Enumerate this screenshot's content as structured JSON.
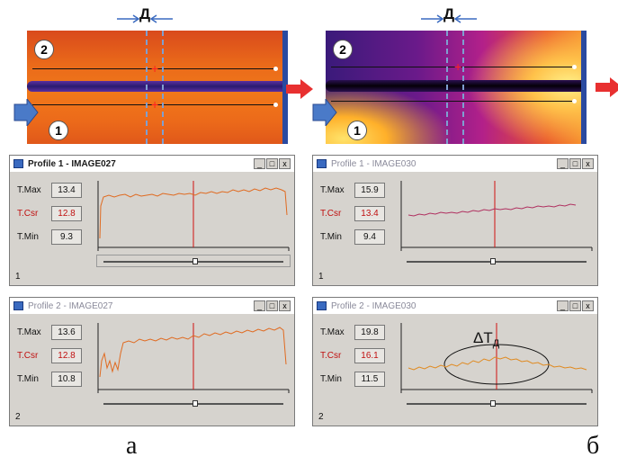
{
  "top_labels": {
    "dim_label": "Д",
    "marker_1": "1",
    "marker_2": "2"
  },
  "windows": [
    {
      "title": "Profile 1 - IMAGE027",
      "tmax_label": "T.Max",
      "tmax": "13.4",
      "tcsr_label": "T.Csr",
      "tcsr": "12.8",
      "tmin_label": "T.Min",
      "tmin": "9.3",
      "index": "1",
      "state": "active"
    },
    {
      "title": "Profile 1 - IMAGE030",
      "tmax_label": "T.Max",
      "tmax": "15.9",
      "tcsr_label": "T.Csr",
      "tcsr": "13.4",
      "tmin_label": "T.Min",
      "tmin": "9.4",
      "index": "1",
      "state": "inactive"
    },
    {
      "title": "Profile 2 - IMAGE027",
      "tmax_label": "T.Max",
      "tmax": "13.6",
      "tcsr_label": "T.Csr",
      "tcsr": "12.8",
      "tmin_label": "T.Min",
      "tmin": "10.8",
      "index": "2",
      "state": "inactive"
    },
    {
      "title": "Profile 2 - IMAGE030",
      "tmax_label": "T.Max",
      "tmax": "19.8",
      "tcsr_label": "T.Csr",
      "tcsr": "16.1",
      "tmin_label": "T.Min",
      "tmin": "11.5",
      "index": "2",
      "state": "inactive",
      "annotation": "ΔT",
      "annotation_sub": "Д"
    }
  ],
  "window_buttons": {
    "minimize": "_",
    "maximize": "□",
    "close": "x"
  },
  "captions": {
    "left": "а",
    "right": "б"
  },
  "colors": {
    "profile_line": "#e06a20",
    "profile_line_b1": "#b03060",
    "cursor": "#d01010"
  }
}
